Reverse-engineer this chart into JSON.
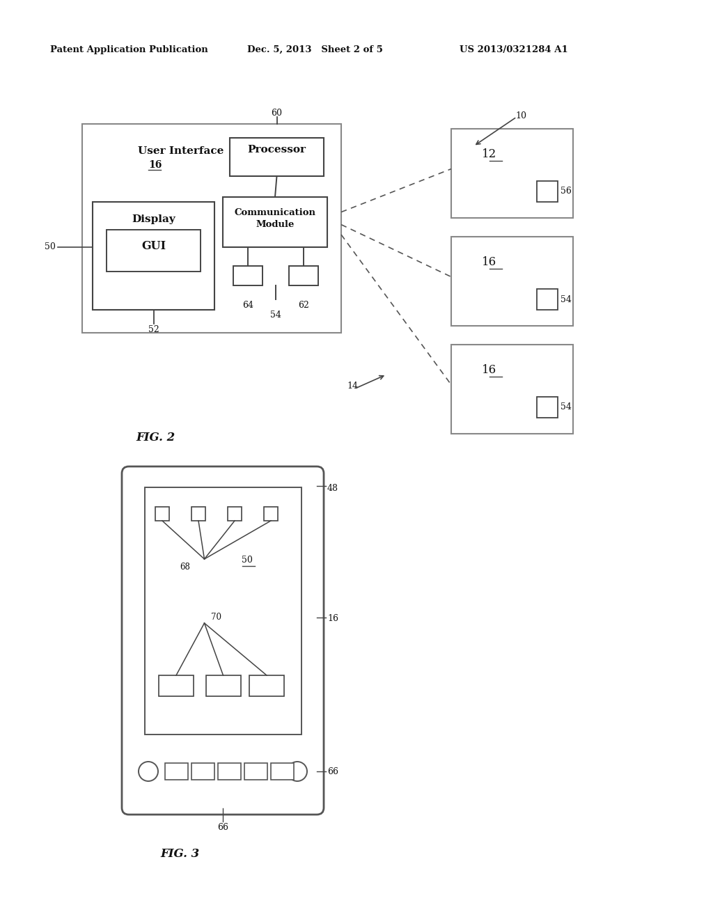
{
  "bg_color": "#ffffff",
  "header_left": "Patent Application Publication",
  "header_mid": "Dec. 5, 2013   Sheet 2 of 5",
  "header_right": "US 2013/0321284 A1",
  "fig2_label": "FIG. 2",
  "fig3_label": "FIG. 3",
  "ref10": "10",
  "ref14": "14",
  "ref50_fig2": "50",
  "ref52": "52",
  "ref54_bottom": "54",
  "ref60": "60",
  "ref62": "62",
  "ref64": "64",
  "remote1_label": "12",
  "remote1_ref": "56",
  "remote2_label": "16",
  "remote2_ref": "54",
  "remote3_label": "16",
  "remote3_ref": "54",
  "ui_label1": "User Interface",
  "ui_label2": "16",
  "proc_label": "Processor",
  "comm_label1": "Communication",
  "comm_label2": "Module",
  "disp_label": "Display",
  "gui_label": "GUI",
  "ref48": "48",
  "ref16_fig3": "16",
  "ref66a": "66",
  "ref66b": "66",
  "ref68": "68",
  "ref70": "70",
  "ref50_fig3": "50"
}
